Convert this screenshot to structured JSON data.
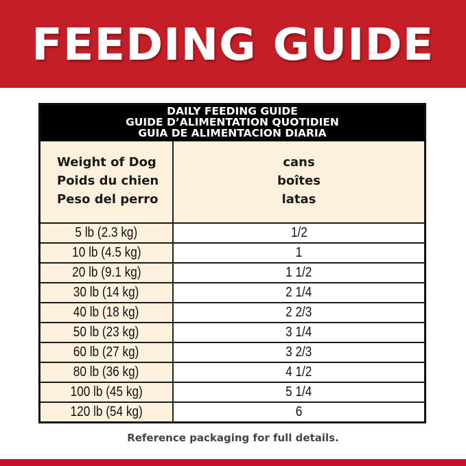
{
  "banner": {
    "title": "FEEDING GUIDE",
    "color": "#c41f28"
  },
  "table": {
    "header_lines": [
      "DAILY FEEDING GUIDE",
      "GUIDE D’ALIMENTATION QUOTIDIEN",
      "GUIA DE ALIMENTACION DIARIA"
    ],
    "column_headers": {
      "weight": [
        "Weight of Dog",
        "Poids du chien",
        "Peso del perro"
      ],
      "amount": [
        "cans",
        "boîtes",
        "latas"
      ]
    },
    "rows": [
      {
        "weight": "5 lb (2.3 kg)",
        "cans": "1/2"
      },
      {
        "weight": "10 lb (4.5 kg)",
        "cans": "1"
      },
      {
        "weight": "20 lb (9.1 kg)",
        "cans": "1 1/2"
      },
      {
        "weight": "30 lb (14 kg)",
        "cans": "2 1/4"
      },
      {
        "weight": "40 lb (18 kg)",
        "cans": "2 2/3"
      },
      {
        "weight": "50 lb (23 kg)",
        "cans": "3 1/4"
      },
      {
        "weight": "60 lb (27 kg)",
        "cans": "3 2/3"
      },
      {
        "weight": "80 lb (36 kg)",
        "cans": "4 1/2"
      },
      {
        "weight": "100 lb (45 kg)",
        "cans": "5 1/4"
      },
      {
        "weight": "120 lb (54 kg)",
        "cans": "6"
      }
    ],
    "colors": {
      "weight_column_bg": "#fdf0dc",
      "header_bg": "#000000"
    }
  },
  "footer": {
    "note": "Reference packaging for full details."
  }
}
